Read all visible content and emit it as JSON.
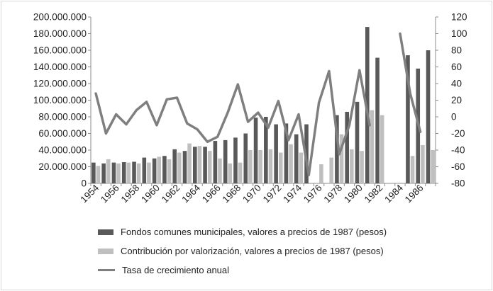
{
  "chart_data": {
    "type": "bar",
    "categories": [
      "1954",
      "1955",
      "1956",
      "1957",
      "1958",
      "1959",
      "1960",
      "1961",
      "1962",
      "1963",
      "1964",
      "1965",
      "1966",
      "1967",
      "1968",
      "1969",
      "1970",
      "1971",
      "1972",
      "1973",
      "1974",
      "1975",
      "1976",
      "1977",
      "1978",
      "1979",
      "1980",
      "1981",
      "1982",
      "1983",
      "1984",
      "1985",
      "1986",
      "1987"
    ],
    "x_tick_labels": [
      "1954",
      "1956",
      "1958",
      "1960",
      "1962",
      "1964",
      "1966",
      "1968",
      "1970",
      "1972",
      "1974",
      "1976",
      "1978",
      "1980",
      "1982",
      "1984",
      "1986"
    ],
    "series": [
      {
        "name": "Fondos comunes municipales, valores a precios de 1987 (pesos)",
        "kind": "bar",
        "axis": "left",
        "color": "#595959",
        "values": [
          25000000,
          24000000,
          25000000,
          25500000,
          26000000,
          31000000,
          30000000,
          33000000,
          41000000,
          39000000,
          44000000,
          44000000,
          51000000,
          52000000,
          55000000,
          60000000,
          79000000,
          80000000,
          71000000,
          72000000,
          59000000,
          71000000,
          null,
          null,
          82000000,
          86000000,
          98000000,
          188000000,
          151000000,
          null,
          null,
          154000000,
          138000000,
          160000000
        ]
      },
      {
        "name": "Contribución por valorización, valores a precios de 1987 (pesos)",
        "kind": "bar",
        "axis": "left",
        "color": "#bfbfbf",
        "values": [
          21000000,
          29000000,
          24000000,
          25000000,
          24000000,
          25000000,
          32000000,
          29000000,
          37000000,
          48000000,
          45000000,
          39000000,
          30000000,
          24000000,
          25000000,
          40000000,
          40000000,
          41000000,
          37000000,
          47000000,
          37000000,
          null,
          23000000,
          31000000,
          59000000,
          41000000,
          39000000,
          88000000,
          82000000,
          null,
          null,
          33000000,
          46000000,
          40000000
        ]
      },
      {
        "name": "Tasa de crecimiento anual",
        "kind": "line",
        "axis": "right",
        "color": "#7f7f7f",
        "values": [
          28,
          -20,
          3,
          -9,
          8,
          18,
          -10,
          21,
          23,
          -8,
          -15,
          -30,
          -24,
          5,
          39,
          -6,
          5,
          -13,
          19,
          -28,
          3,
          -70,
          17,
          55,
          -45,
          -10,
          56,
          -10,
          null,
          null,
          100,
          28,
          -18,
          null
        ]
      }
    ],
    "y_left": {
      "min": 0,
      "max": 200000000,
      "step": 20000000,
      "tick_labels": [
        "0",
        "20.000.000",
        "40.000.000",
        "60.000.000",
        "80.000.000",
        "100.000.000",
        "120.000.000",
        "140.000.000",
        "160.000.000",
        "180.000.000",
        "200.000.000"
      ]
    },
    "y_right": {
      "min": -80,
      "max": 120,
      "step": 20,
      "tick_labels": [
        "-80",
        "-60",
        "-40",
        "-20",
        "0",
        "20",
        "40",
        "60",
        "80",
        "100",
        "120"
      ]
    },
    "grid": false,
    "legend_position": "bottom",
    "title": "",
    "xlabel": "",
    "ylabel": ""
  }
}
